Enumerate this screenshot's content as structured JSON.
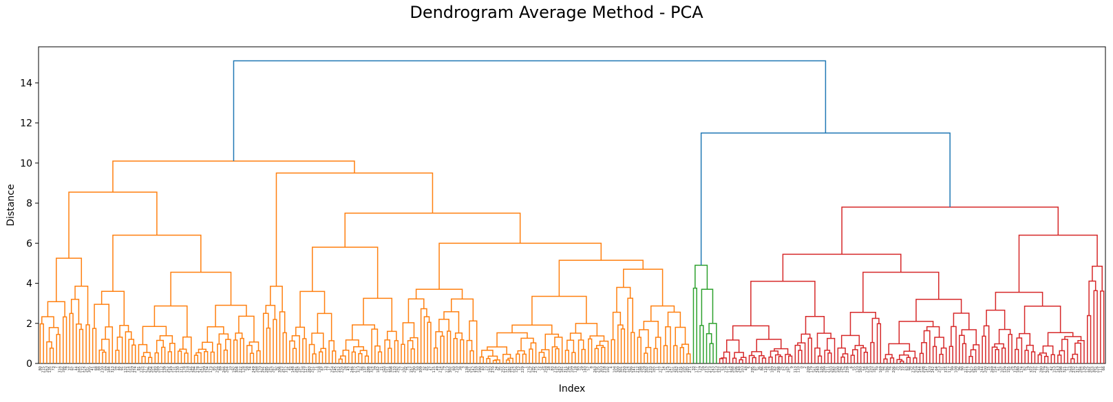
{
  "chart_data": {
    "type": "dendrogram",
    "title": "Dendrogram Average Method - PCA",
    "xlabel": "Index",
    "ylabel": "Distance",
    "ylim": [
      0,
      15.8
    ],
    "yticks": [
      0,
      2,
      4,
      6,
      8,
      10,
      12,
      14
    ],
    "leaf_count": 325,
    "colors": {
      "orange": "#ff7f0e",
      "green": "#2ca02c",
      "red": "#d62728",
      "blue": "#1f77b4"
    },
    "clusters": [
      {
        "color": "orange",
        "leaves": 199,
        "top_merge": 10.1
      },
      {
        "color": "green",
        "leaves": 8,
        "top_merge": 4.9
      },
      {
        "color": "red",
        "leaves": 118,
        "top_merge": 7.8
      }
    ],
    "root_merges": [
      {
        "left": "red",
        "right": "green",
        "height": 11.5
      },
      {
        "left": "orange",
        "right": "green+red",
        "height": 15.1
      }
    ],
    "orange_subtree": {
      "a_merge": 8.55,
      "a1": 5.25,
      "a2_merge": 6.4,
      "a2a": 3.6,
      "a2b": 4.55,
      "b_merge": 9.5,
      "b1_merge": 3.85,
      "b2_merge": 7.5,
      "b2a": 5.8,
      "b2b": 6.0,
      "b2b_left": 3.7,
      "b2b_right": 5.15,
      "b2b_right_a": 3.35,
      "b2b_right_b": 4.7
    },
    "red_subtree": {
      "left_merge": 5.45,
      "left_a": 4.1,
      "left_b": 4.55,
      "left_b2": 3.2,
      "right_merge": 6.4,
      "right_a": 3.55,
      "right_b": 4.85
    }
  }
}
